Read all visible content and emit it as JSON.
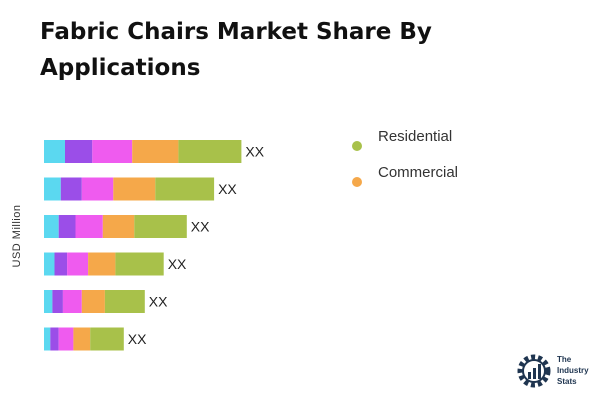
{
  "chart_data": {
    "type": "bar",
    "orientation": "horizontal",
    "stacked": true,
    "title": "Fabric Chairs Market Share By Applications",
    "ylabel": "USD Million",
    "categories": [
      "",
      "",
      "",
      "",
      "",
      ""
    ],
    "series": [
      {
        "values": [
          10,
          8,
          7,
          5,
          4,
          3
        ],
        "color": "#5bd8f0"
      },
      {
        "values": [
          13,
          10,
          8,
          6,
          5,
          4
        ],
        "color": "#9b4ee8"
      },
      {
        "values": [
          19,
          15,
          13,
          10,
          9,
          7
        ],
        "color": "#ef5bef"
      },
      {
        "values": [
          22,
          20,
          15,
          13,
          11,
          8
        ],
        "color": "#f5a84a"
      },
      {
        "values": [
          30,
          28,
          25,
          23,
          19,
          16
        ],
        "color": "#a8c14a"
      }
    ],
    "data_labels": [
      "XX",
      "XX",
      "XX",
      "XX",
      "XX",
      "XX"
    ],
    "legend": {
      "position": "right",
      "items": [
        {
          "label": "Residential",
          "color": "#a8c14a"
        },
        {
          "label": "Commercial",
          "color": "#f5a84a"
        }
      ]
    },
    "grid": false
  },
  "logo": {
    "lines": [
      "The",
      "Industry",
      "Stats"
    ]
  }
}
